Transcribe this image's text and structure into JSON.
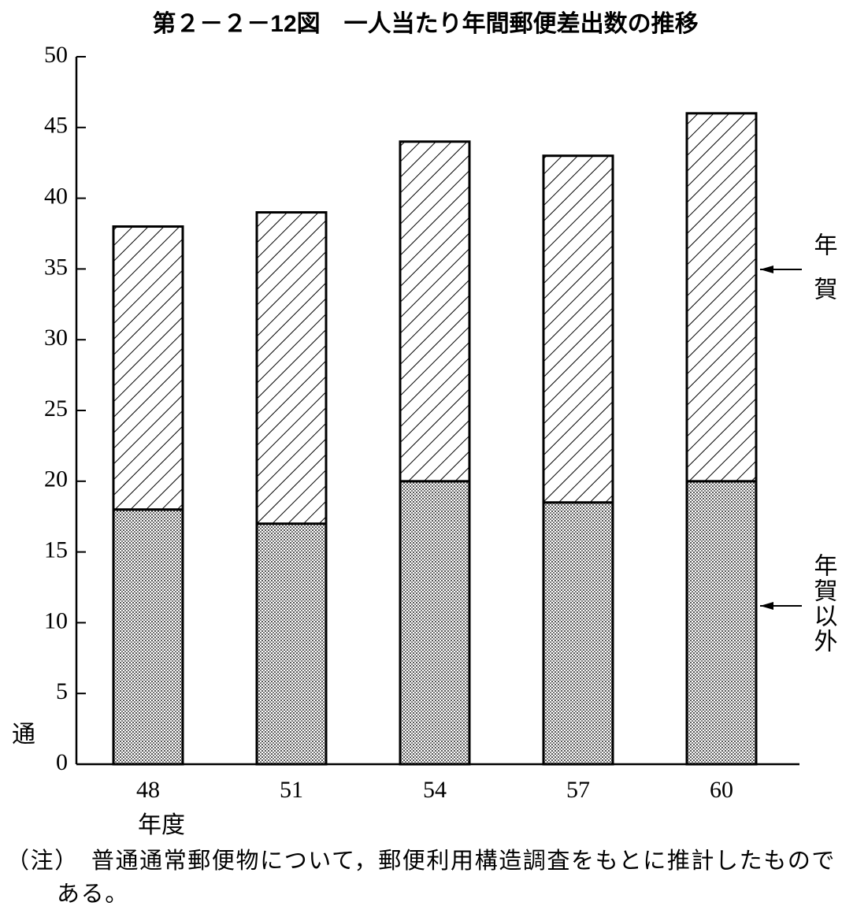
{
  "chart_data": {
    "type": "stacked_bar",
    "title": "第２－２－12図　一人当たり年間郵便差出数の推移",
    "categories": [
      "48",
      "51",
      "54",
      "57",
      "60"
    ],
    "x_label": "年度",
    "y_label": "通",
    "series": [
      {
        "name": "年賀以外",
        "color": "#000000",
        "pattern": "dots",
        "values": [
          18,
          17,
          20,
          18.5,
          20
        ]
      },
      {
        "name": "年賀",
        "color": "#000000",
        "pattern": "hatch",
        "values": [
          20,
          22,
          24,
          24.5,
          26
        ]
      }
    ],
    "ylim": [
      0,
      50
    ],
    "yticks": [
      0,
      5,
      10,
      15,
      20,
      25,
      30,
      35,
      40,
      45,
      50
    ],
    "note": "（注）　普通通常郵便物について，郵便利用構造調査をもとに推計したものである。"
  }
}
